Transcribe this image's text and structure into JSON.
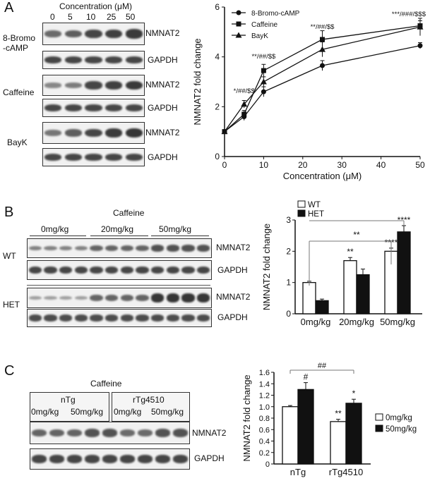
{
  "figure": {
    "panels": [
      {
        "letter": "A",
        "blot": {
          "concentration_title": "Concentration (μM)",
          "concentrations": [
            "0",
            "5",
            "10",
            "25",
            "50"
          ],
          "rows": [
            {
              "treatment": "8-Bromo\n-cAMP",
              "protein": "NMNAT2",
              "intensity": [
                0.55,
                0.65,
                0.85,
                0.9,
                0.95
              ]
            },
            {
              "treatment": "",
              "protein": "GAPDH",
              "intensity": [
                0.85,
                0.85,
                0.85,
                0.85,
                0.85
              ]
            },
            {
              "treatment": "Caffeine",
              "protein": "NMNAT2",
              "intensity": [
                0.3,
                0.4,
                0.85,
                0.9,
                0.95
              ]
            },
            {
              "treatment": "",
              "protein": "GAPDH",
              "intensity": [
                0.85,
                0.85,
                0.85,
                0.85,
                0.85
              ]
            },
            {
              "treatment": "BayK",
              "protein": "NMNAT2",
              "intensity": [
                0.45,
                0.65,
                0.85,
                0.95,
                1.0
              ]
            },
            {
              "treatment": "",
              "protein": "GAPDH",
              "intensity": [
                0.85,
                0.85,
                0.85,
                0.85,
                0.85
              ]
            }
          ]
        }
      },
      {
        "letter": "B",
        "blot": {
          "title": "Caffeine",
          "doses": [
            "0mg/kg",
            "20mg/kg",
            "50mg/kg"
          ],
          "rows": [
            {
              "group": "WT",
              "protein": "NMNAT2"
            },
            {
              "group": "",
              "protein": "GAPDH"
            },
            {
              "group": "HET",
              "protein": "NMNAT2"
            },
            {
              "group": "",
              "protein": "GAPDH"
            }
          ]
        }
      },
      {
        "letter": "C",
        "blot": {
          "title": "Caffeine",
          "genotypes": [
            "nTg",
            "rTg4510"
          ],
          "dose_labels": [
            "0mg/kg",
            "50mg/kg",
            "0mg/kg",
            "50mg/kg"
          ],
          "rows": [
            {
              "protein": "NMNAT2"
            },
            {
              "protein": "GAPDH"
            }
          ]
        }
      }
    ]
  },
  "chart_data": [
    {
      "type": "line",
      "panel": "A",
      "xlabel": "Concentration (μM)",
      "ylabel": "NMNAT2 fold change",
      "xlim": [
        0,
        50
      ],
      "ylim": [
        0,
        6
      ],
      "xticks": [
        "0",
        "10",
        "20",
        "30",
        "40",
        "50"
      ],
      "yticks": [
        "0",
        "2",
        "4",
        "6"
      ],
      "x": [
        0,
        5,
        10,
        25,
        50
      ],
      "series": [
        {
          "name": "8-Bromo-cAMP",
          "marker": "circle",
          "values": [
            1.0,
            1.6,
            2.6,
            3.65,
            4.45
          ],
          "errors": [
            0.05,
            0.15,
            0.2,
            0.2,
            0.12
          ]
        },
        {
          "name": "Caffeine",
          "marker": "square",
          "values": [
            1.0,
            1.7,
            3.45,
            4.7,
            5.25
          ],
          "errors": [
            0.05,
            0.15,
            0.25,
            0.35,
            0.2
          ]
        },
        {
          "name": "BayK",
          "marker": "triangle",
          "values": [
            1.0,
            2.1,
            3.0,
            4.3,
            5.2
          ],
          "errors": [
            0.05,
            0.15,
            0.2,
            0.3,
            0.35
          ]
        }
      ],
      "annotations": [
        {
          "x": 5,
          "text": "*/##/$$"
        },
        {
          "x": 10,
          "text": "**/##/$$"
        },
        {
          "x": 25,
          "text": "**/##/$$"
        },
        {
          "x": 50,
          "text": "***/###/$$$"
        }
      ],
      "legend_position": "top-left"
    },
    {
      "type": "bar",
      "panel": "B",
      "ylabel": "NMNAT2 fold change",
      "categories": [
        "0mg/kg",
        "20mg/kg",
        "50mg/kg"
      ],
      "ylim": [
        0,
        3
      ],
      "yticks": [
        "0",
        "1",
        "2",
        "3"
      ],
      "series": [
        {
          "name": "WT",
          "color": "#ffffff",
          "values": [
            1.0,
            1.7,
            2.0
          ],
          "errors": [
            0.04,
            0.1,
            0.1
          ],
          "labels": [
            "",
            "**",
            "****"
          ]
        },
        {
          "name": "HET",
          "color": "#111111",
          "values": [
            0.42,
            1.25,
            2.62
          ],
          "errors": [
            0.05,
            0.18,
            0.2
          ],
          "labels": [
            "",
            "",
            "****"
          ]
        }
      ],
      "brackets": [
        {
          "text": "**"
        }
      ],
      "legend_position": "top-left"
    },
    {
      "type": "bar",
      "panel": "C",
      "ylabel": "NMNAT2 fold change",
      "categories": [
        "nTg",
        "rTg4510"
      ],
      "ylim": [
        0,
        1.6
      ],
      "yticks": [
        "0",
        "0.2",
        "0.4",
        "0.6",
        "0.8",
        "1.0",
        "1.2",
        "1.4",
        "1.6"
      ],
      "series": [
        {
          "name": "0mg/kg",
          "color": "#ffffff",
          "values": [
            1.0,
            0.74
          ],
          "errors": [
            0.02,
            0.04
          ],
          "labels": [
            "",
            "**"
          ]
        },
        {
          "name": "50mg/kg",
          "color": "#111111",
          "values": [
            1.3,
            1.06
          ],
          "errors": [
            0.12,
            0.07
          ],
          "labels": [
            "#",
            "*"
          ]
        }
      ],
      "brackets": [
        {
          "text": "##"
        }
      ],
      "legend_position": "right"
    }
  ]
}
